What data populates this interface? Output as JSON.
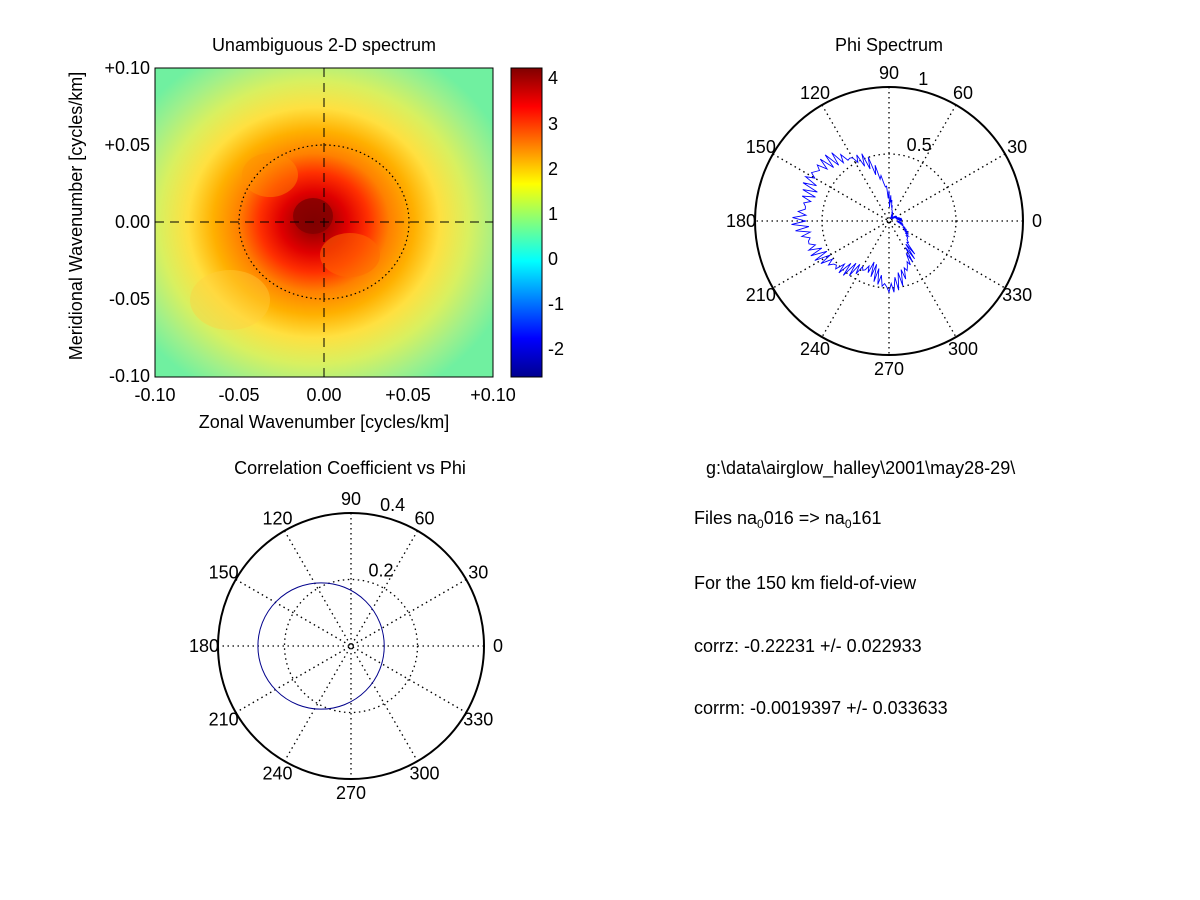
{
  "chart_data": [
    {
      "type": "heatmap",
      "title": "Unambiguous 2-D spectrum",
      "xlabel": "Zonal Wavenumber [cycles/km]",
      "ylabel": "Meridional Wavenumber [cycles/km]",
      "xlim": [
        -0.1,
        0.1
      ],
      "ylim": [
        -0.1,
        0.1
      ],
      "xticks": [
        "-0.10",
        "-0.05",
        "0.00",
        "+0.05",
        "+0.10"
      ],
      "yticks": [
        "+0.10",
        "+0.05",
        "0.00",
        "-0.05",
        "-0.10"
      ],
      "peak": {
        "x": -0.005,
        "y": 0.003,
        "value": 4.2
      },
      "colorbar": {
        "min": -2.6,
        "max": 4.2,
        "ticks": [
          "4",
          "3",
          "2",
          "1",
          "0",
          "-1",
          "-2"
        ],
        "colormap": "jet"
      },
      "crosshair": {
        "style": "dashed",
        "x": 0.0,
        "y": 0.0
      },
      "reference_circle": {
        "radius": 0.05,
        "style": "dotted"
      }
    },
    {
      "type": "line",
      "polar": true,
      "title": "Phi Spectrum",
      "rmax": 1,
      "rings": [
        0.5,
        1
      ],
      "ring_labels": [
        "0.5",
        "1"
      ],
      "angle_labels": [
        "0",
        "30",
        "60",
        "90",
        "120",
        "150",
        "180",
        "210",
        "240",
        "270",
        "300",
        "330"
      ],
      "series_color": "#0000ff",
      "angles_deg": [
        0,
        15,
        30,
        45,
        60,
        75,
        90,
        100,
        110,
        120,
        130,
        140,
        150,
        160,
        170,
        180,
        190,
        200,
        210,
        220,
        230,
        240,
        250,
        260,
        270,
        285,
        300,
        315,
        330,
        345
      ],
      "r": [
        0.08,
        0.06,
        0.05,
        0.04,
        0.05,
        0.1,
        0.22,
        0.35,
        0.48,
        0.52,
        0.58,
        0.6,
        0.62,
        0.58,
        0.6,
        0.66,
        0.63,
        0.62,
        0.6,
        0.57,
        0.52,
        0.46,
        0.4,
        0.44,
        0.5,
        0.38,
        0.25,
        0.18,
        0.14,
        0.1
      ]
    },
    {
      "type": "line",
      "polar": true,
      "title": "Correlation Coefficient vs Phi",
      "rmax": 0.4,
      "rings": [
        0.2,
        0.4
      ],
      "ring_labels": [
        "0.2",
        "0.4"
      ],
      "angle_labels": [
        "0",
        "30",
        "60",
        "90",
        "120",
        "150",
        "180",
        "210",
        "240",
        "270",
        "300",
        "330"
      ],
      "series_color": "#00008b",
      "circle": {
        "center_x": -0.09,
        "center_y": 0.0,
        "radius": 0.19
      }
    }
  ],
  "info": {
    "path": "g:\\data\\airglow_halley\\2001\\may28-29\\",
    "files_prefix": "Files  na",
    "files_sub1": "0",
    "files_mid": "016  =>  na",
    "files_sub2": "0",
    "files_suffix": "161",
    "fov": "For the  150 km field-of-view",
    "corrz": "corrz: -0.22231 +/- 0.022933",
    "corrm": "corrm: -0.0019397 +/- 0.033633"
  }
}
